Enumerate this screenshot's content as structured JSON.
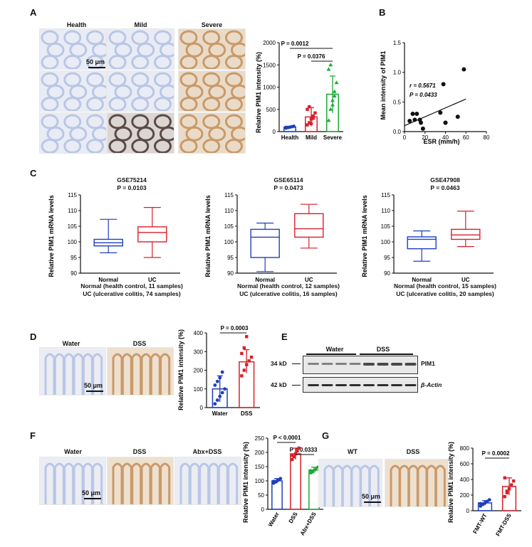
{
  "panels": {
    "A": {
      "letter": "A",
      "col_labels": [
        "Health",
        "Mild",
        "Severe"
      ],
      "scale_bar": "50 μm",
      "chart": {
        "ylabel": "Relative PIM1 intensity (%)",
        "yticks": [
          "0",
          "500",
          "1000",
          "1500",
          "2000"
        ],
        "categories": [
          "Health",
          "Mild",
          "Severe"
        ],
        "p1": "P = 0.0012",
        "p2": "P = 0.0376"
      }
    },
    "B": {
      "letter": "B",
      "ylabel": "Mean intensity of PIM1",
      "xlabel": "ESR  (mm/h)",
      "xticks": [
        "0",
        "20",
        "40",
        "60",
        "80"
      ],
      "yticks": [
        "0.0",
        "0.5",
        "1.0",
        "1.5"
      ],
      "r_text": "r = 0.5671",
      "p_text": "P = 0.0433"
    },
    "C": {
      "letter": "C",
      "ylabel": "Relative PIM1 mRNA levels",
      "yticks": [
        "90",
        "95",
        "100",
        "105",
        "110",
        "115"
      ],
      "groups": [
        "Normal",
        "UC"
      ],
      "datasets": [
        {
          "id": "GSE75214",
          "p": "P = 0.0103",
          "note1": "Normal (health control, 11 samples)",
          "note2": "UC (ulcerative colitis, 74 samples)"
        },
        {
          "id": "GSE65114",
          "p": "P = 0.0473",
          "note1": "Normal (health control, 12 samples)",
          "note2": "UC (ulcerative colitis, 16 samples)"
        },
        {
          "id": "GSE47908",
          "p": "P = 0.0463",
          "note1": "Normal (health control, 15 samples)",
          "note2": "UC (ulcerative colitis, 20 samples)"
        }
      ]
    },
    "D": {
      "letter": "D",
      "col_labels": [
        "Water",
        "DSS"
      ],
      "scale_bar": "50 μm",
      "chart": {
        "ylabel": "Relative PIM1 intensity (%)",
        "yticks": [
          "0",
          "100",
          "200",
          "300",
          "400"
        ],
        "categories": [
          "Water",
          "DSS"
        ],
        "p": "P = 0.0003"
      }
    },
    "E": {
      "letter": "E",
      "groups": [
        "Water",
        "DSS"
      ],
      "bands": [
        {
          "kd": "34 kD",
          "label": "PIM1"
        },
        {
          "kd": "42 kD",
          "label": "β-Actin"
        }
      ]
    },
    "F": {
      "letter": "F",
      "col_labels": [
        "Water",
        "DSS",
        "Abx+DSS"
      ],
      "scale_bar": "50 μm",
      "chart": {
        "ylabel": "Relative PIM1 intensity (%)",
        "yticks": [
          "0",
          "50",
          "100",
          "150",
          "200",
          "250"
        ],
        "categories": [
          "Water",
          "DSS",
          "Abx+DSS"
        ],
        "p1": "P < 0.0001",
        "p2": "P = 0.0333"
      }
    },
    "G": {
      "letter": "G",
      "col_labels": [
        "WT",
        "DSS"
      ],
      "scale_bar": "50 μm",
      "chart": {
        "ylabel": "Relative PIM1 intensity (%)",
        "yticks": [
          "0",
          "200",
          "400",
          "600",
          "800"
        ],
        "categories": [
          "FMT-WT",
          "FMT-DSS"
        ],
        "p": "P = 0.0002"
      }
    }
  },
  "colors": {
    "blue": "#1f3fbf",
    "red": "#d8202a",
    "green": "#1ea83a",
    "stain_blue": "#b9c6e6",
    "stain_brown": "#c99a6a"
  },
  "chart_data": [
    {
      "type": "bar",
      "panel": "A",
      "categories": [
        "Health",
        "Mild",
        "Severe"
      ],
      "values": [
        100,
        330,
        840
      ],
      "errors": [
        [
          80,
          120
        ],
        [
          120,
          540
        ],
        [
          420,
          1250
        ]
      ],
      "points": [
        [
          80,
          90,
          100,
          110,
          120,
          95
        ],
        [
          150,
          200,
          280,
          350,
          420,
          500,
          560,
          180,
          300
        ],
        [
          250,
          500,
          700,
          900,
          1100,
          1400,
          1500,
          600,
          800
        ]
      ],
      "ylim": [
        0,
        2000
      ],
      "ylabel": "Relative PIM1 intensity (%)",
      "annotations": [
        "P = 0.0012",
        "P = 0.0376"
      ]
    },
    {
      "type": "scatter",
      "panel": "B",
      "x": [
        5,
        8,
        10,
        12,
        15,
        16,
        18,
        35,
        38,
        40,
        40,
        52,
        58
      ],
      "y": [
        0.18,
        0.3,
        0.2,
        0.3,
        0.2,
        0.15,
        0.05,
        0.32,
        0.8,
        0.15,
        0.15,
        0.25,
        1.05
      ],
      "fit": {
        "x": [
          0,
          60
        ],
        "y": [
          0.1,
          0.55
        ]
      },
      "xlim": [
        0,
        80
      ],
      "ylim": [
        0,
        1.5
      ],
      "xlabel": "ESR  (mm/h)",
      "ylabel": "Mean intensity of PIM1",
      "annotations": [
        "r = 0.5671",
        "P = 0.0433"
      ]
    },
    {
      "type": "box",
      "panel": "C",
      "title": "GSE75214",
      "categories": [
        "Normal",
        "UC"
      ],
      "boxes": [
        {
          "min": 96.5,
          "q1": 98.7,
          "median": 99.7,
          "q3": 100.8,
          "max": 107.2
        },
        {
          "min": 95.0,
          "q1": 100.0,
          "median": 103.0,
          "q3": 104.8,
          "max": 111.0
        }
      ],
      "ylim": [
        90,
        115
      ],
      "ylabel": "Relative PIM1 mRNA levels",
      "annotations": [
        "P = 0.0103"
      ]
    },
    {
      "type": "box",
      "panel": "C",
      "title": "GSE65114",
      "categories": [
        "Normal",
        "UC"
      ],
      "boxes": [
        {
          "min": 90.5,
          "q1": 95.0,
          "median": 101.5,
          "q3": 104.0,
          "max": 106.0
        },
        {
          "min": 98.0,
          "q1": 101.5,
          "median": 104.2,
          "q3": 109.0,
          "max": 112.0
        }
      ],
      "ylim": [
        90,
        115
      ],
      "ylabel": "Relative PIM1 mRNA levels",
      "annotations": [
        "P = 0.0473"
      ]
    },
    {
      "type": "box",
      "panel": "C",
      "title": "GSE47908",
      "categories": [
        "Normal",
        "UC"
      ],
      "boxes": [
        {
          "min": 93.8,
          "q1": 97.8,
          "median": 100.8,
          "q3": 101.6,
          "max": 103.5
        },
        {
          "min": 98.5,
          "q1": 100.8,
          "median": 102.2,
          "q3": 104.0,
          "max": 109.8
        }
      ],
      "ylim": [
        90,
        115
      ],
      "ylabel": "Relative PIM1 mRNA levels",
      "annotations": [
        "P = 0.0463"
      ]
    },
    {
      "type": "bar",
      "panel": "D",
      "categories": [
        "Water",
        "DSS"
      ],
      "values": [
        100,
        245
      ],
      "errors": [
        [
          30,
          170
        ],
        [
          185,
          310
        ]
      ],
      "points": [
        [
          20,
          40,
          60,
          80,
          100,
          120,
          140,
          160,
          190
        ],
        [
          170,
          200,
          230,
          250,
          270,
          290,
          320,
          380
        ]
      ],
      "ylim": [
        0,
        400
      ],
      "ylabel": "Relative PIM1 intensity (%)",
      "annotations": [
        "P = 0.0003"
      ]
    },
    {
      "type": "bar",
      "panel": "F",
      "categories": [
        "Water",
        "DSS",
        "Abx+DSS"
      ],
      "values": [
        100,
        195,
        138
      ],
      "errors": [
        [
          92,
          108
        ],
        [
          175,
          215
        ],
        [
          128,
          148
        ]
      ],
      "points": [
        [
          92,
          96,
          100,
          104,
          108,
          98
        ],
        [
          175,
          185,
          195,
          205,
          215,
          190
        ],
        [
          128,
          132,
          138,
          142,
          148,
          136
        ]
      ],
      "ylim": [
        0,
        250
      ],
      "ylabel": "Relative PIM1 intensity (%)",
      "annotations": [
        "P < 0.0001",
        "P = 0.0333"
      ]
    },
    {
      "type": "bar",
      "panel": "G",
      "categories": [
        "FMT-WT",
        "FMT-DSS"
      ],
      "values": [
        100,
        310
      ],
      "errors": [
        [
          70,
          130
        ],
        [
          200,
          420
        ]
      ],
      "points": [
        [
          60,
          80,
          100,
          120,
          140,
          90
        ],
        [
          180,
          230,
          280,
          330,
          380,
          420,
          250
        ]
      ],
      "ylim": [
        0,
        800
      ],
      "ylabel": "Relative PIM1 intensity (%)",
      "annotations": [
        "P = 0.0002"
      ]
    }
  ]
}
